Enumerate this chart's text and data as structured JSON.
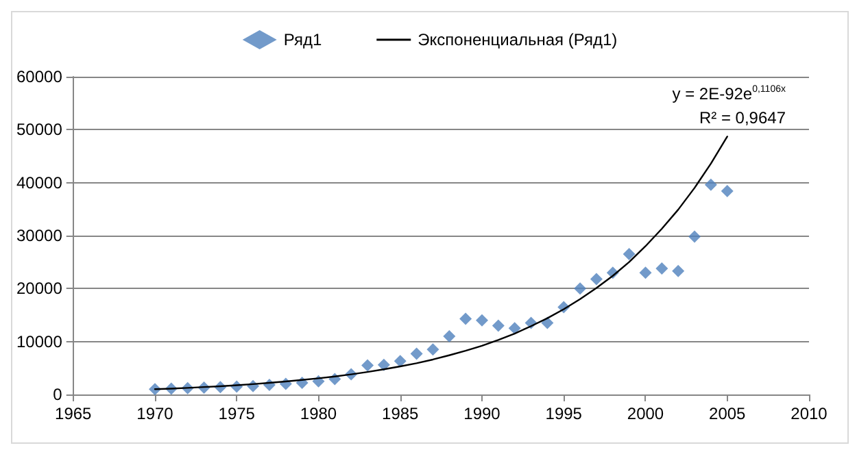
{
  "chart_data": {
    "type": "scatter",
    "legend": "top",
    "grid": "y",
    "xlim": [
      1965,
      2010
    ],
    "xticks": [
      1965,
      1970,
      1975,
      1980,
      1985,
      1990,
      1995,
      2000,
      2005,
      2010
    ],
    "ylim": [
      0,
      60000
    ],
    "yticks": [
      0,
      10000,
      20000,
      30000,
      40000,
      50000,
      60000
    ],
    "annotations": [
      "y = 2E-92e$^{0,1106x}$",
      "R² = 0,9647"
    ],
    "series": [
      {
        "name": "Ряд1",
        "marker": "diamond",
        "color": "#4f81bd",
        "x": [
          1970,
          1971,
          1972,
          1973,
          1974,
          1975,
          1976,
          1977,
          1978,
          1979,
          1980,
          1981,
          1982,
          1983,
          1984,
          1985,
          1986,
          1987,
          1988,
          1989,
          1990,
          1991,
          1992,
          1993,
          1994,
          1995,
          1996,
          1997,
          1998,
          1999,
          2000,
          2001,
          2002,
          2003,
          2004,
          2005
        ],
        "values": [
          1000,
          1100,
          1200,
          1300,
          1400,
          1500,
          1600,
          1800,
          2000,
          2200,
          2500,
          2900,
          3800,
          5500,
          5600,
          6300,
          7700,
          8500,
          11000,
          14300,
          14000,
          13000,
          12500,
          13500,
          13500,
          16500,
          20000,
          21800,
          23000,
          26500,
          23000,
          23800,
          23300,
          29800,
          39600,
          38400
        ]
      },
      {
        "name": "Экспоненциальная (Ряд1)",
        "type": "line",
        "marker": "none",
        "line_style": "solid",
        "color": "#000000",
        "x": [
          1970,
          1971,
          1972,
          1973,
          1974,
          1975,
          1976,
          1977,
          1978,
          1979,
          1980,
          1981,
          1982,
          1983,
          1984,
          1985,
          1986,
          1987,
          1988,
          1989,
          1990,
          1991,
          1992,
          1993,
          1994,
          1995,
          1996,
          1997,
          1998,
          1999,
          2000,
          2001,
          2002,
          2003,
          2004,
          2005
        ],
        "values": [
          1000,
          1100,
          1250,
          1400,
          1550,
          1750,
          1950,
          2200,
          2450,
          2750,
          3050,
          3400,
          3800,
          4250,
          4750,
          5300,
          5900,
          6600,
          7400,
          8250,
          9200,
          10300,
          11500,
          12900,
          14400,
          16100,
          18000,
          20100,
          22400,
          25000,
          28000,
          31300,
          34900,
          39000,
          43600,
          48700
        ]
      }
    ]
  }
}
